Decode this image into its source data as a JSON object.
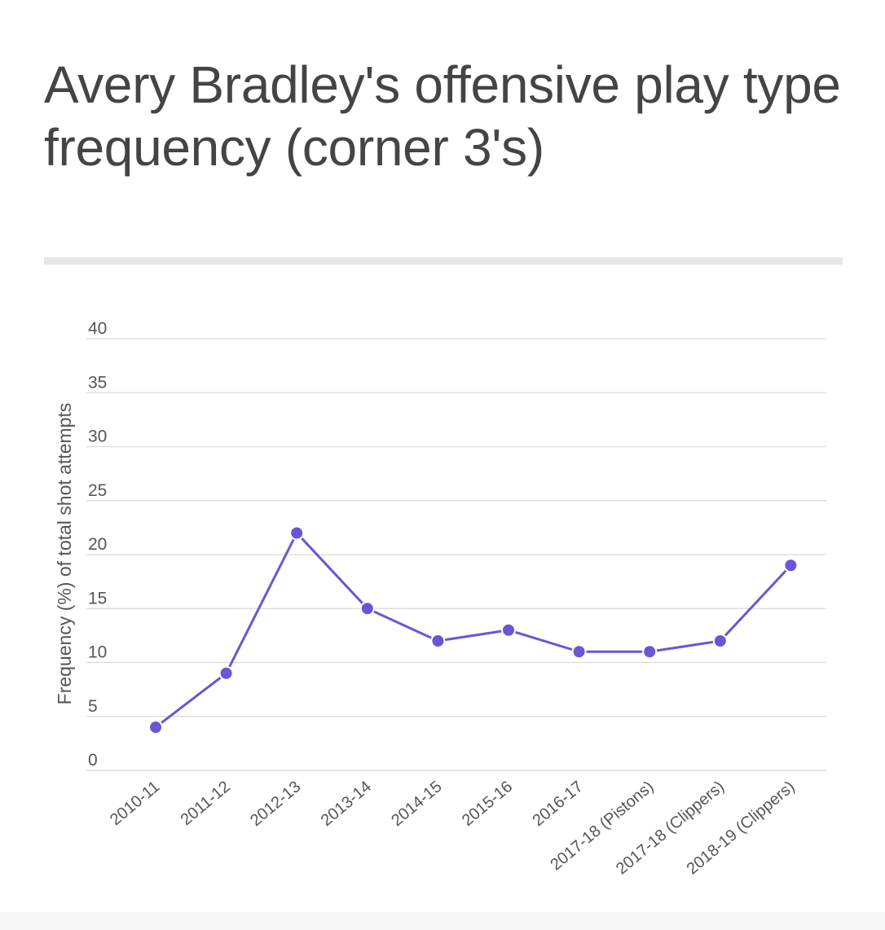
{
  "title": "Avery Bradley's offensive play type frequency (corner 3's)",
  "chart_data": {
    "type": "line",
    "title": "Avery Bradley's offensive play type frequency (corner 3's)",
    "xlabel": "",
    "ylabel": "Frequency (%) of total shot attempts",
    "ylim": [
      0,
      40
    ],
    "yticks": [
      0,
      5,
      10,
      15,
      20,
      25,
      30,
      35,
      40
    ],
    "grid": true,
    "legend": "none",
    "categories": [
      "2010-11",
      "2011-12",
      "2012-13",
      "2013-14",
      "2014-15",
      "2015-16",
      "2016-17",
      "2017-18 (Pistons)",
      "2017-18 (Clippers)",
      "2018-19 (Clippers)"
    ],
    "series": [
      {
        "values": [
          4,
          9,
          22,
          15,
          12,
          13,
          11,
          11,
          12,
          19
        ]
      }
    ],
    "colors": {
      "line": "#6a55d6",
      "grid": "#d9d9d9",
      "text": "#555555"
    }
  }
}
